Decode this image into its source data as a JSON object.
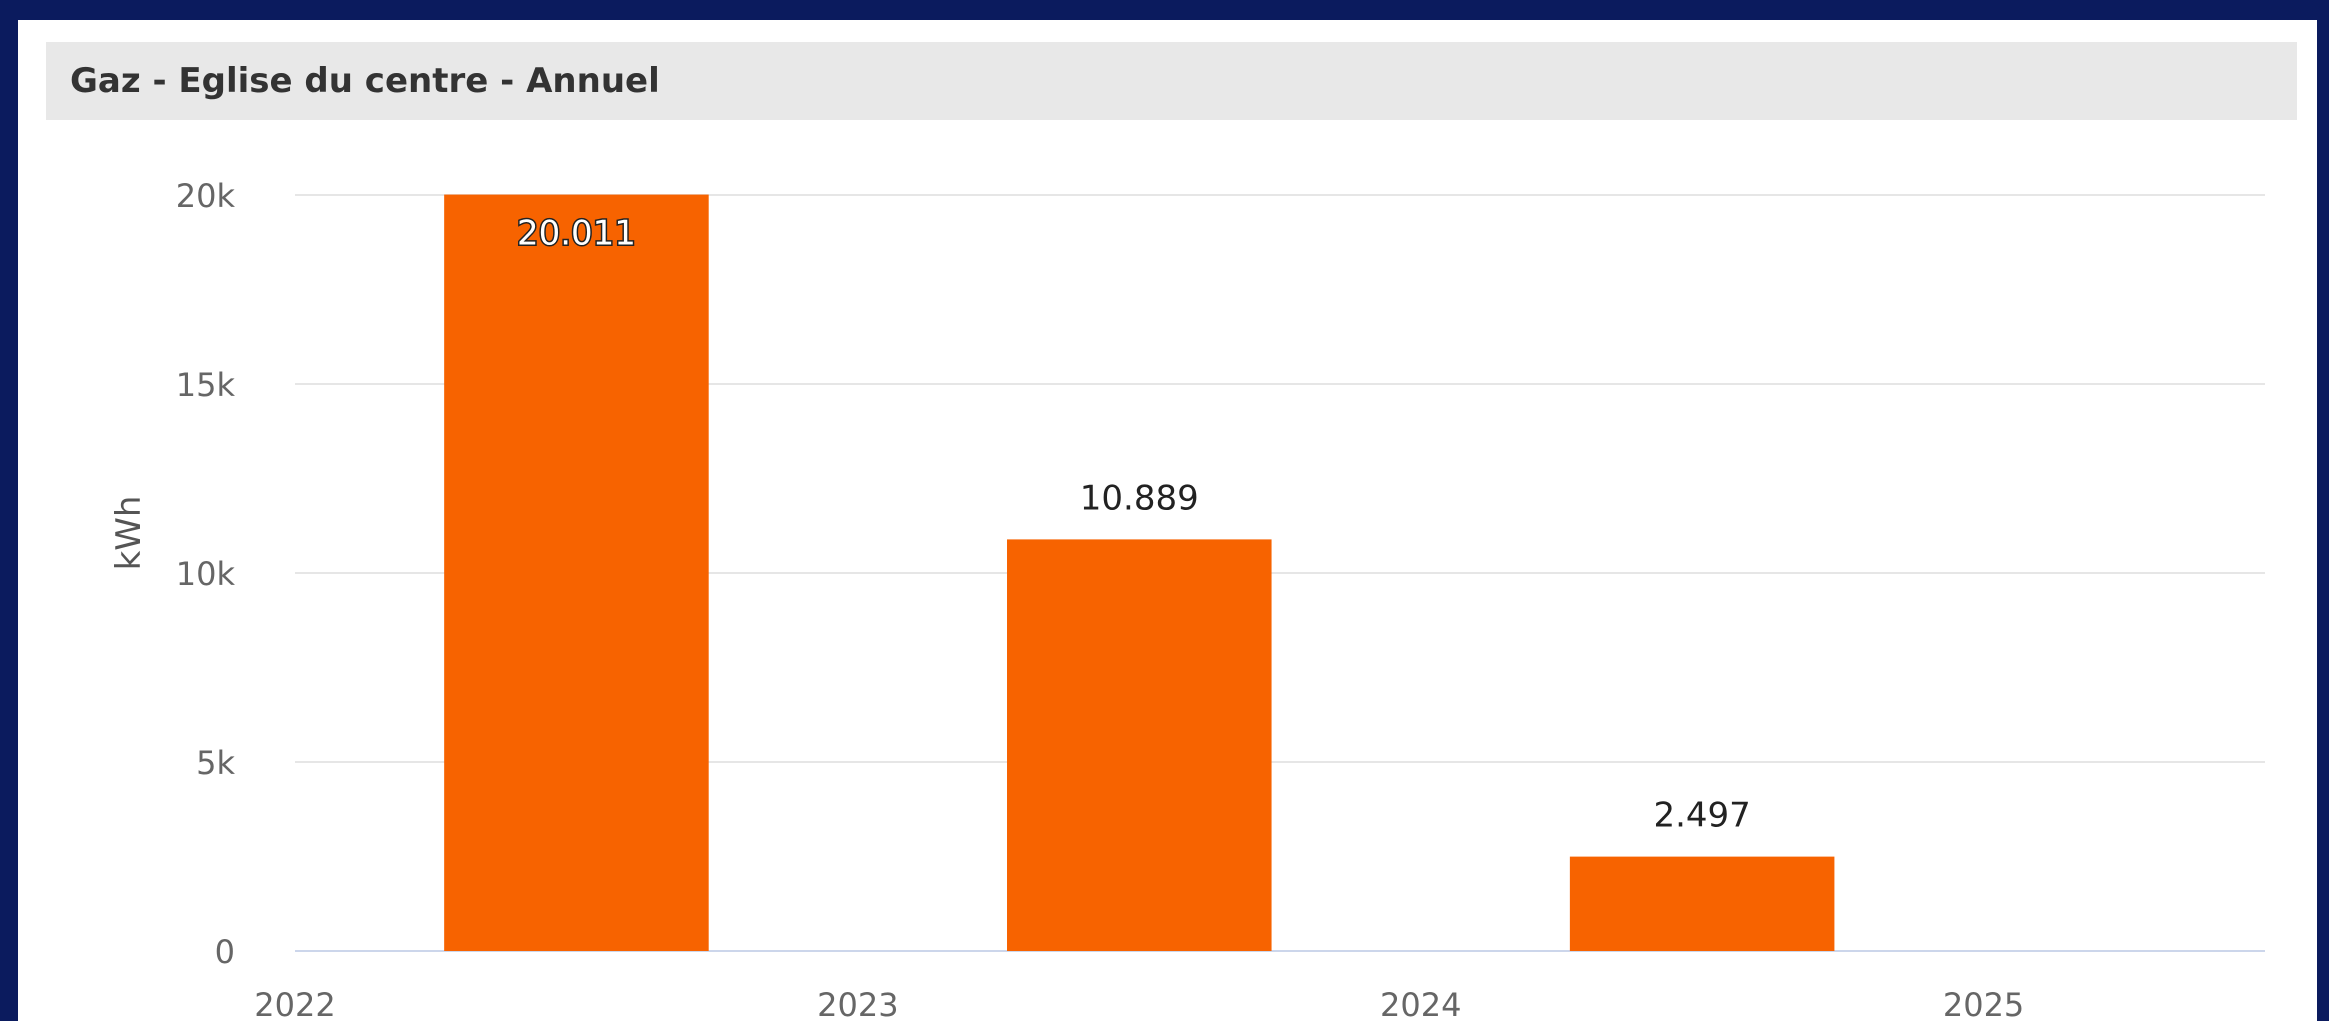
{
  "header": {
    "title": "Gaz - Eglise du centre - Annuel"
  },
  "colors": {
    "background": "#0b1b5e",
    "panel": "#ffffff",
    "header_bar": "#e8e8e8",
    "bar": "#f76300",
    "grid": "#e6e6e6",
    "axis_line": "#ccd6eb",
    "tick_label": "#666666"
  },
  "chart_data": {
    "type": "bar",
    "title": "Gaz - Eglise du centre - Annuel",
    "ylabel": "kWh",
    "xlabel": "",
    "x_ticks": [
      "2022",
      "2023",
      "2024",
      "2025"
    ],
    "y_ticks": [
      "0",
      "5k",
      "10k",
      "15k",
      "20k"
    ],
    "y_tick_values": [
      0,
      5000,
      10000,
      15000,
      20000
    ],
    "ylim": [
      0,
      20000
    ],
    "xlim": [
      2022,
      2025.5
    ],
    "grid": true,
    "legend": "none",
    "series": [
      {
        "x": [
          2022.5,
          2023.5,
          2024.5
        ],
        "values": [
          20011,
          10889,
          2497
        ],
        "labels": [
          "20.011",
          "10.889",
          "2.497"
        ],
        "color": "#f76300"
      }
    ]
  }
}
